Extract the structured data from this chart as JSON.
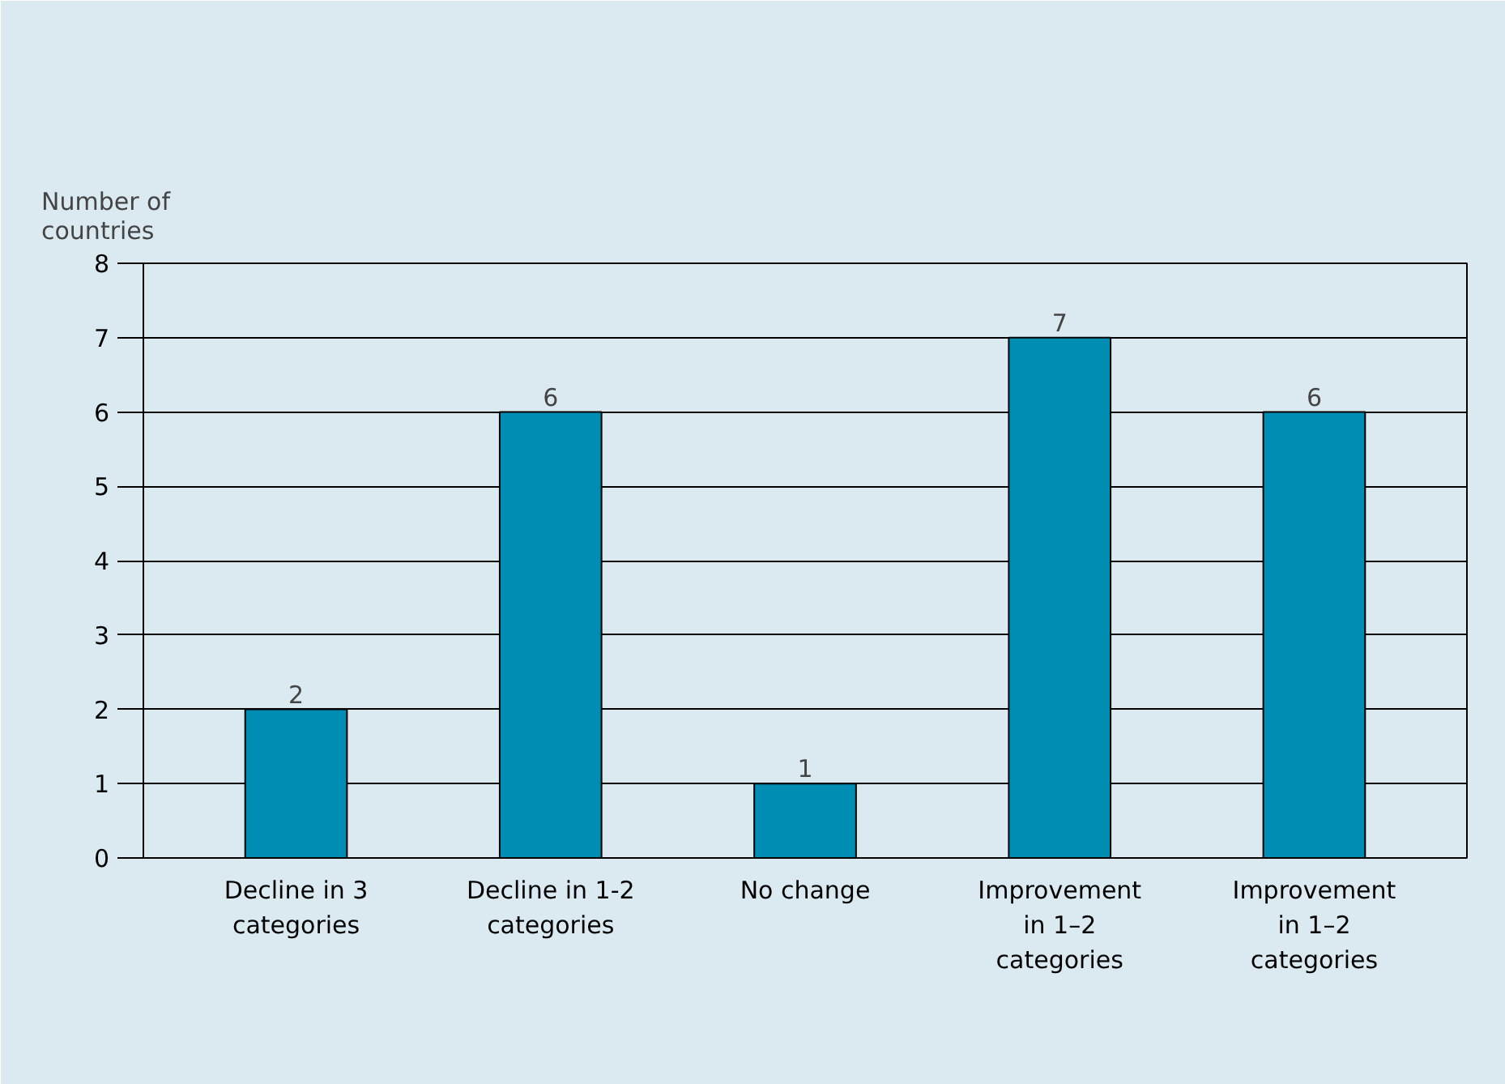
{
  "chart_data": {
    "type": "bar",
    "ylabel": "Number of\ncountries",
    "categories": [
      "Decline in 3\ncategories",
      "Decline in 1-2\ncategories",
      "No change",
      "Improvement\nin 1–2\ncategories",
      "Improvement\nin 1–2\ncategories"
    ],
    "values": [
      2,
      6,
      1,
      7,
      6
    ],
    "color": "#008db3",
    "ylim": [
      0,
      8
    ],
    "yticks": [
      0,
      1,
      2,
      3,
      4,
      5,
      6,
      7,
      8
    ],
    "grid": "y",
    "data_labels": true
  }
}
